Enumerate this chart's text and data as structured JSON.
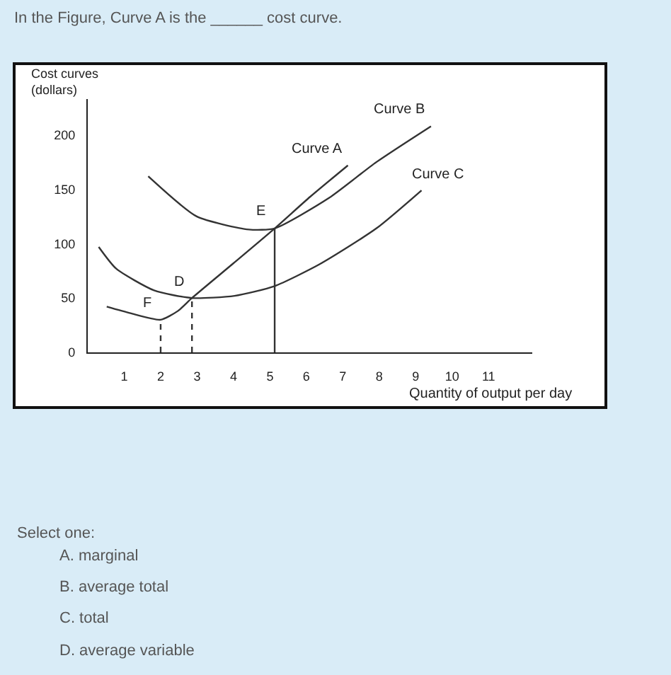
{
  "chart_data": {
    "type": "line",
    "title": "In the Figure, Curve A is the ______ cost curve.",
    "xlabel": "Quantity of output per day",
    "ylabel": "Cost curves\n(dollars)",
    "xlim": [
      0,
      12.2
    ],
    "ylim": [
      0,
      233
    ],
    "xticks": [
      1,
      2,
      3,
      4,
      5,
      6,
      7,
      8,
      9,
      10,
      11
    ],
    "yticks": [
      0,
      50,
      100,
      150,
      200
    ],
    "legend": false,
    "marker": "none",
    "series": [
      {
        "name": "Curve A",
        "color": "#333333",
        "line_style": "solid",
        "x": [
          0.52,
          1.17,
          2.0,
          2.47,
          2.86,
          4.0,
          5.13,
          6.1,
          7.14
        ],
        "values": [
          42,
          36,
          30,
          38,
          50,
          82,
          114,
          143,
          172
        ]
      },
      {
        "name": "Curve B",
        "color": "#333333",
        "line_style": "solid",
        "x": [
          1.66,
          2.99,
          4.42,
          5.13,
          6.62,
          7.92,
          9.42
        ],
        "values": [
          162,
          125,
          113,
          114,
          142,
          175,
          208
        ]
      },
      {
        "name": "Curve C",
        "color": "#333333",
        "line_style": "solid",
        "x": [
          0.3,
          0.78,
          1.82,
          2.86,
          4.03,
          5.13,
          6.36,
          7.92,
          9.16
        ],
        "values": [
          97,
          77,
          57,
          50,
          52,
          61,
          81,
          114,
          149
        ]
      },
      {
        "color": "#333333",
        "line_style": "dashed",
        "x": [
          2.0,
          2.0
        ],
        "values": [
          0,
          30
        ]
      },
      {
        "color": "#333333",
        "line_style": "dashed",
        "x": [
          2.86,
          2.86
        ],
        "values": [
          0,
          50
        ]
      },
      {
        "color": "#333333",
        "line_style": "solid",
        "x": [
          5.13,
          5.13
        ],
        "values": [
          0,
          114
        ]
      }
    ],
    "annotations": [
      {
        "text": "F",
        "x": 2.0,
        "y": 30
      },
      {
        "text": "D",
        "x": 2.86,
        "y": 50
      },
      {
        "text": "E",
        "x": 5.13,
        "y": 114
      },
      "Select one:",
      "A. marginal",
      "B. average total",
      "C. total",
      "D. average variable"
    ]
  }
}
